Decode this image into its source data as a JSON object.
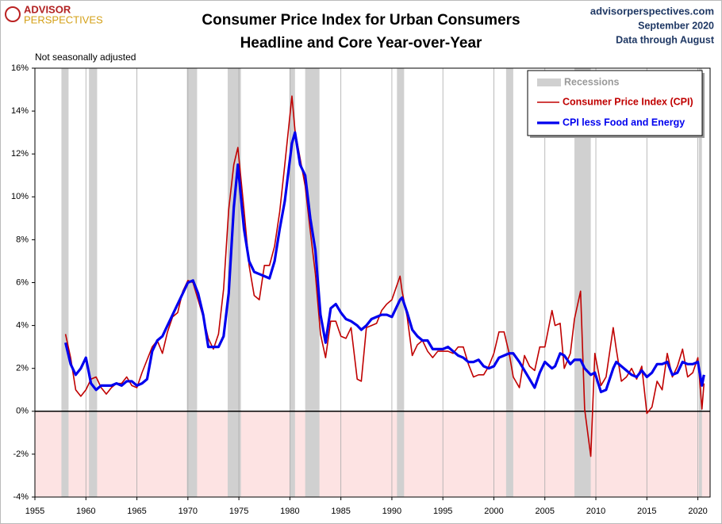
{
  "chart_data": {
    "type": "line",
    "title": "Consumer Price Index for Urban Consumers",
    "subtitle": "Headline and Core Year-over-Year",
    "logo": [
      "ADVISOR",
      "PERSPECTIVES"
    ],
    "source_lines": [
      "advisorperspectives.com",
      "September 2020",
      "Data through August"
    ],
    "annotation": "Not seasonally adjusted",
    "legend_position": "upper right",
    "grid": true,
    "zero_line": true,
    "negative_shade": "#fde3e3",
    "xlim": [
      1955,
      2021.2
    ],
    "xticks": [
      1955,
      1960,
      1965,
      1970,
      1975,
      1980,
      1985,
      1990,
      1995,
      2000,
      2005,
      2010,
      2015,
      2020
    ],
    "ylim": [
      -4,
      16
    ],
    "yticks": [
      {
        "value": -4,
        "label": "-4%"
      },
      {
        "value": -2,
        "label": "-2%"
      },
      {
        "value": 0,
        "label": "0%"
      },
      {
        "value": 2,
        "label": "2%"
      },
      {
        "value": 4,
        "label": "4%"
      },
      {
        "value": 6,
        "label": "6%"
      },
      {
        "value": 8,
        "label": "8%"
      },
      {
        "value": 10,
        "label": "10%"
      },
      {
        "value": 12,
        "label": "12%"
      },
      {
        "value": 14,
        "label": "14%"
      },
      {
        "value": 16,
        "label": "16%"
      }
    ],
    "recessions": {
      "name": "Recessions",
      "color": "#d0d0d0",
      "ranges": [
        [
          1957.6,
          1958.3
        ],
        [
          1960.3,
          1961.1
        ],
        [
          1969.9,
          1970.9
        ],
        [
          1973.9,
          1975.2
        ],
        [
          1980.0,
          1980.5
        ],
        [
          1981.5,
          1982.9
        ],
        [
          1990.5,
          1991.2
        ],
        [
          2001.2,
          2001.9
        ],
        [
          2007.9,
          2009.5
        ],
        [
          2020.1,
          2020.4
        ]
      ]
    },
    "x": [
      1958.0,
      1958.5,
      1959.0,
      1959.5,
      1960.0,
      1960.5,
      1961.0,
      1961.5,
      1962.0,
      1962.5,
      1963.0,
      1963.5,
      1964.0,
      1964.5,
      1965.0,
      1965.5,
      1966.0,
      1966.5,
      1967.0,
      1967.5,
      1968.0,
      1968.5,
      1969.0,
      1969.5,
      1970.0,
      1970.5,
      1971.0,
      1971.5,
      1972.0,
      1972.5,
      1973.0,
      1973.5,
      1974.0,
      1974.5,
      1974.9,
      1975.5,
      1976.0,
      1976.5,
      1977.0,
      1977.5,
      1978.0,
      1978.5,
      1979.0,
      1979.5,
      1980.2,
      1980.5,
      1981.0,
      1981.5,
      1982.0,
      1982.5,
      1983.0,
      1983.5,
      1984.0,
      1984.5,
      1985.0,
      1985.5,
      1986.0,
      1986.6,
      1987.0,
      1987.5,
      1988.0,
      1988.5,
      1989.0,
      1989.5,
      1990.0,
      1990.8,
      1991.0,
      1991.5,
      1992.0,
      1992.5,
      1993.0,
      1993.5,
      1994.0,
      1994.5,
      1995.0,
      1995.5,
      1996.0,
      1996.5,
      1997.0,
      1997.5,
      1998.0,
      1998.5,
      1999.0,
      1999.5,
      2000.0,
      2000.5,
      2001.0,
      2001.5,
      2001.9,
      2002.5,
      2003.0,
      2003.5,
      2004.0,
      2004.5,
      2005.0,
      2005.7,
      2006.0,
      2006.5,
      2006.9,
      2007.5,
      2007.9,
      2008.5,
      2008.9,
      2009.5,
      2009.9,
      2010.5,
      2011.0,
      2011.7,
      2012.0,
      2012.5,
      2013.0,
      2013.5,
      2014.0,
      2014.5,
      2015.0,
      2015.5,
      2016.0,
      2016.5,
      2017.0,
      2017.5,
      2018.0,
      2018.5,
      2019.0,
      2019.5,
      2020.0,
      2020.4,
      2020.6
    ],
    "series": [
      {
        "name": "Consumer Price Index (CPI)",
        "color": "#c00000",
        "width": 1.6,
        "values": [
          3.6,
          2.5,
          1.0,
          0.7,
          1.0,
          1.5,
          1.6,
          1.1,
          0.8,
          1.1,
          1.3,
          1.3,
          1.6,
          1.2,
          1.1,
          1.8,
          2.4,
          3.0,
          3.3,
          2.7,
          3.7,
          4.4,
          4.6,
          5.6,
          6.1,
          6.0,
          5.2,
          4.4,
          3.4,
          2.9,
          3.6,
          5.7,
          9.4,
          11.5,
          12.3,
          9.4,
          6.8,
          5.4,
          5.2,
          6.8,
          6.8,
          7.7,
          9.3,
          11.5,
          14.7,
          13.1,
          11.8,
          10.5,
          8.4,
          6.4,
          3.6,
          2.5,
          4.2,
          4.2,
          3.5,
          3.4,
          3.9,
          1.5,
          1.4,
          3.9,
          4.0,
          4.1,
          4.7,
          5.0,
          5.2,
          6.3,
          5.6,
          4.4,
          2.6,
          3.1,
          3.3,
          2.8,
          2.5,
          2.8,
          2.8,
          2.8,
          2.7,
          3.0,
          3.0,
          2.2,
          1.6,
          1.7,
          1.7,
          2.1,
          2.7,
          3.7,
          3.7,
          2.7,
          1.6,
          1.1,
          2.6,
          2.1,
          1.9,
          3.0,
          3.0,
          4.7,
          4.0,
          4.1,
          2.0,
          2.7,
          4.3,
          5.6,
          0.1,
          -2.1,
          2.7,
          1.2,
          1.6,
          3.9,
          2.9,
          1.4,
          1.6,
          2.0,
          1.5,
          2.1,
          -0.1,
          0.2,
          1.4,
          1.0,
          2.7,
          1.6,
          2.1,
          2.9,
          1.6,
          1.8,
          2.5,
          0.1,
          1.3
        ]
      },
      {
        "name": "CPI less Food and Energy",
        "color": "#0000ee",
        "width": 3.2,
        "values": [
          3.2,
          2.2,
          1.7,
          2.0,
          2.5,
          1.3,
          1.0,
          1.2,
          1.2,
          1.2,
          1.3,
          1.2,
          1.4,
          1.4,
          1.2,
          1.3,
          1.5,
          2.8,
          3.3,
          3.5,
          4.0,
          4.5,
          5.0,
          5.5,
          6.0,
          6.1,
          5.5,
          4.5,
          3.0,
          3.0,
          3.0,
          3.5,
          5.5,
          9.5,
          11.5,
          8.5,
          7.0,
          6.5,
          6.4,
          6.3,
          6.2,
          7.0,
          8.5,
          9.8,
          12.5,
          13.0,
          11.5,
          11.0,
          9.0,
          7.5,
          4.5,
          3.2,
          4.8,
          5.0,
          4.6,
          4.3,
          4.2,
          4.0,
          3.8,
          4.0,
          4.3,
          4.4,
          4.5,
          4.5,
          4.4,
          5.2,
          5.3,
          4.6,
          3.8,
          3.5,
          3.3,
          3.3,
          2.9,
          2.9,
          2.9,
          3.0,
          2.8,
          2.6,
          2.5,
          2.3,
          2.3,
          2.4,
          2.1,
          2.0,
          2.1,
          2.5,
          2.6,
          2.7,
          2.7,
          2.3,
          1.9,
          1.5,
          1.1,
          1.8,
          2.3,
          2.0,
          2.1,
          2.7,
          2.6,
          2.2,
          2.4,
          2.4,
          2.0,
          1.7,
          1.8,
          0.9,
          1.0,
          2.0,
          2.3,
          2.1,
          1.9,
          1.7,
          1.6,
          1.9,
          1.6,
          1.8,
          2.2,
          2.2,
          2.3,
          1.7,
          1.8,
          2.3,
          2.2,
          2.2,
          2.3,
          1.2,
          1.7
        ]
      }
    ]
  }
}
